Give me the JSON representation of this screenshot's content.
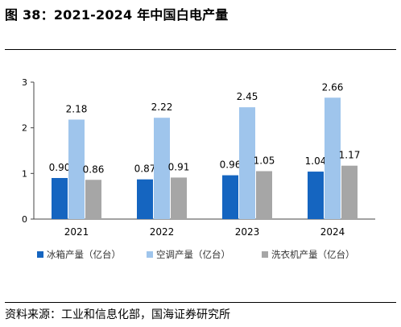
{
  "title": "图 38：2021-2024 年中国白电产量",
  "source": "资料来源：工业和信息化部，国海证券研究所",
  "chart_data": {
    "type": "bar",
    "categories": [
      "2021",
      "2022",
      "2023",
      "2024"
    ],
    "series": [
      {
        "name": "冰箱产量（亿台）",
        "values": [
          0.9,
          0.87,
          0.96,
          1.04
        ],
        "labels": [
          "0.90",
          "0.87",
          "0.96",
          "1.04"
        ],
        "color": "#1565c0"
      },
      {
        "name": "空调产量（亿台）",
        "values": [
          2.18,
          2.22,
          2.45,
          2.66
        ],
        "labels": [
          "2.18",
          "2.22",
          "2.45",
          "2.66"
        ],
        "color": "#9fc5ec"
      },
      {
        "name": "洗衣机产量（亿台）",
        "values": [
          0.86,
          0.91,
          1.05,
          1.17
        ],
        "labels": [
          "0.86",
          "0.91",
          "1.05",
          "1.17"
        ],
        "color": "#a6a6a6"
      }
    ],
    "yticks": [
      "0",
      "1",
      "2",
      "3"
    ],
    "ylim": [
      0,
      3
    ],
    "xlabel": "",
    "ylabel": "",
    "legend": "bottom",
    "grid": false
  }
}
